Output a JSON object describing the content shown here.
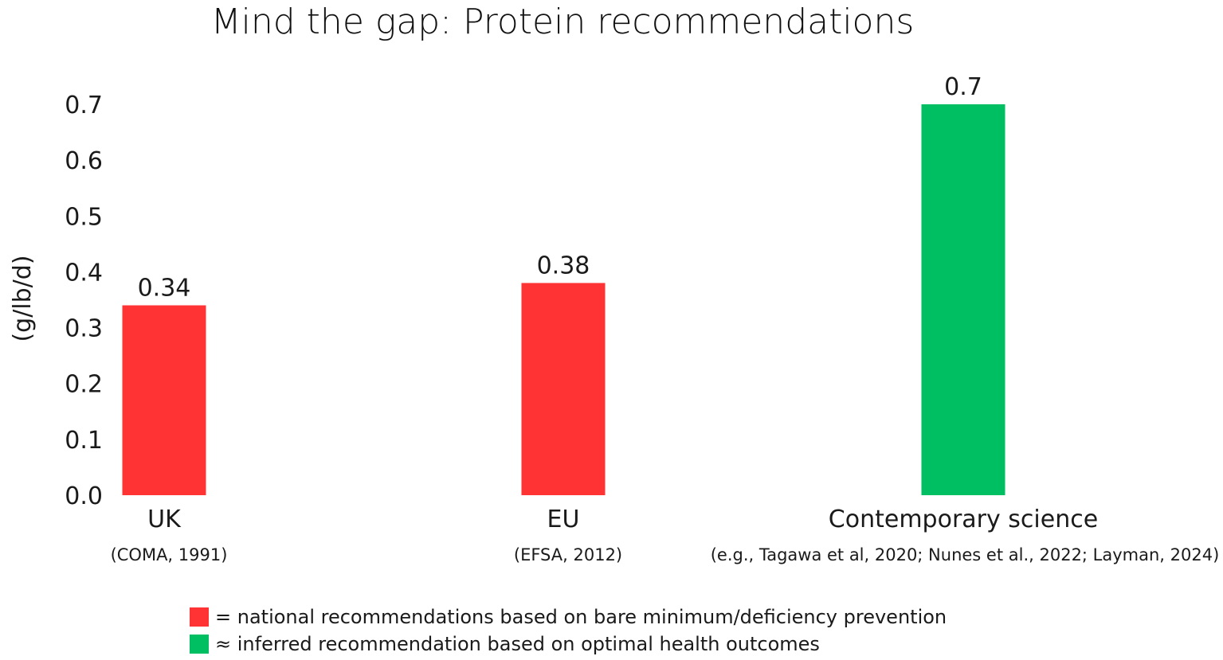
{
  "chart_data": {
    "type": "bar",
    "title": "Mind the gap: Protein recommendations",
    "xlabel": "",
    "ylabel": "(g/lb/d)",
    "ylim": [
      0,
      0.7
    ],
    "yticks": [
      "0.0",
      "0.1",
      "0.2",
      "0.3",
      "0.4",
      "0.5",
      "0.6",
      "0.7"
    ],
    "grid": false,
    "legend_position": "bottom",
    "categories": [
      "UK",
      "EU",
      "Contemporary science"
    ],
    "category_sublabels": [
      "(COMA, 1991)",
      "(EFSA, 2012)",
      "(e.g., Tagawa et al, 2020; Nunes et al., 2022; Layman, 2024)"
    ],
    "values": [
      0.34,
      0.38,
      0.7
    ],
    "value_labels": [
      "0.34",
      "0.38",
      "0.7"
    ],
    "bar_colors": [
      "#ff3333",
      "#ff3333",
      "#00bf63"
    ],
    "legend": [
      {
        "color": "#ff3333",
        "text": "= national recommendations based on bare minimum/deficiency prevention"
      },
      {
        "color": "#00bf63",
        "text": "≈ inferred recommendation based on optimal health outcomes"
      }
    ]
  }
}
